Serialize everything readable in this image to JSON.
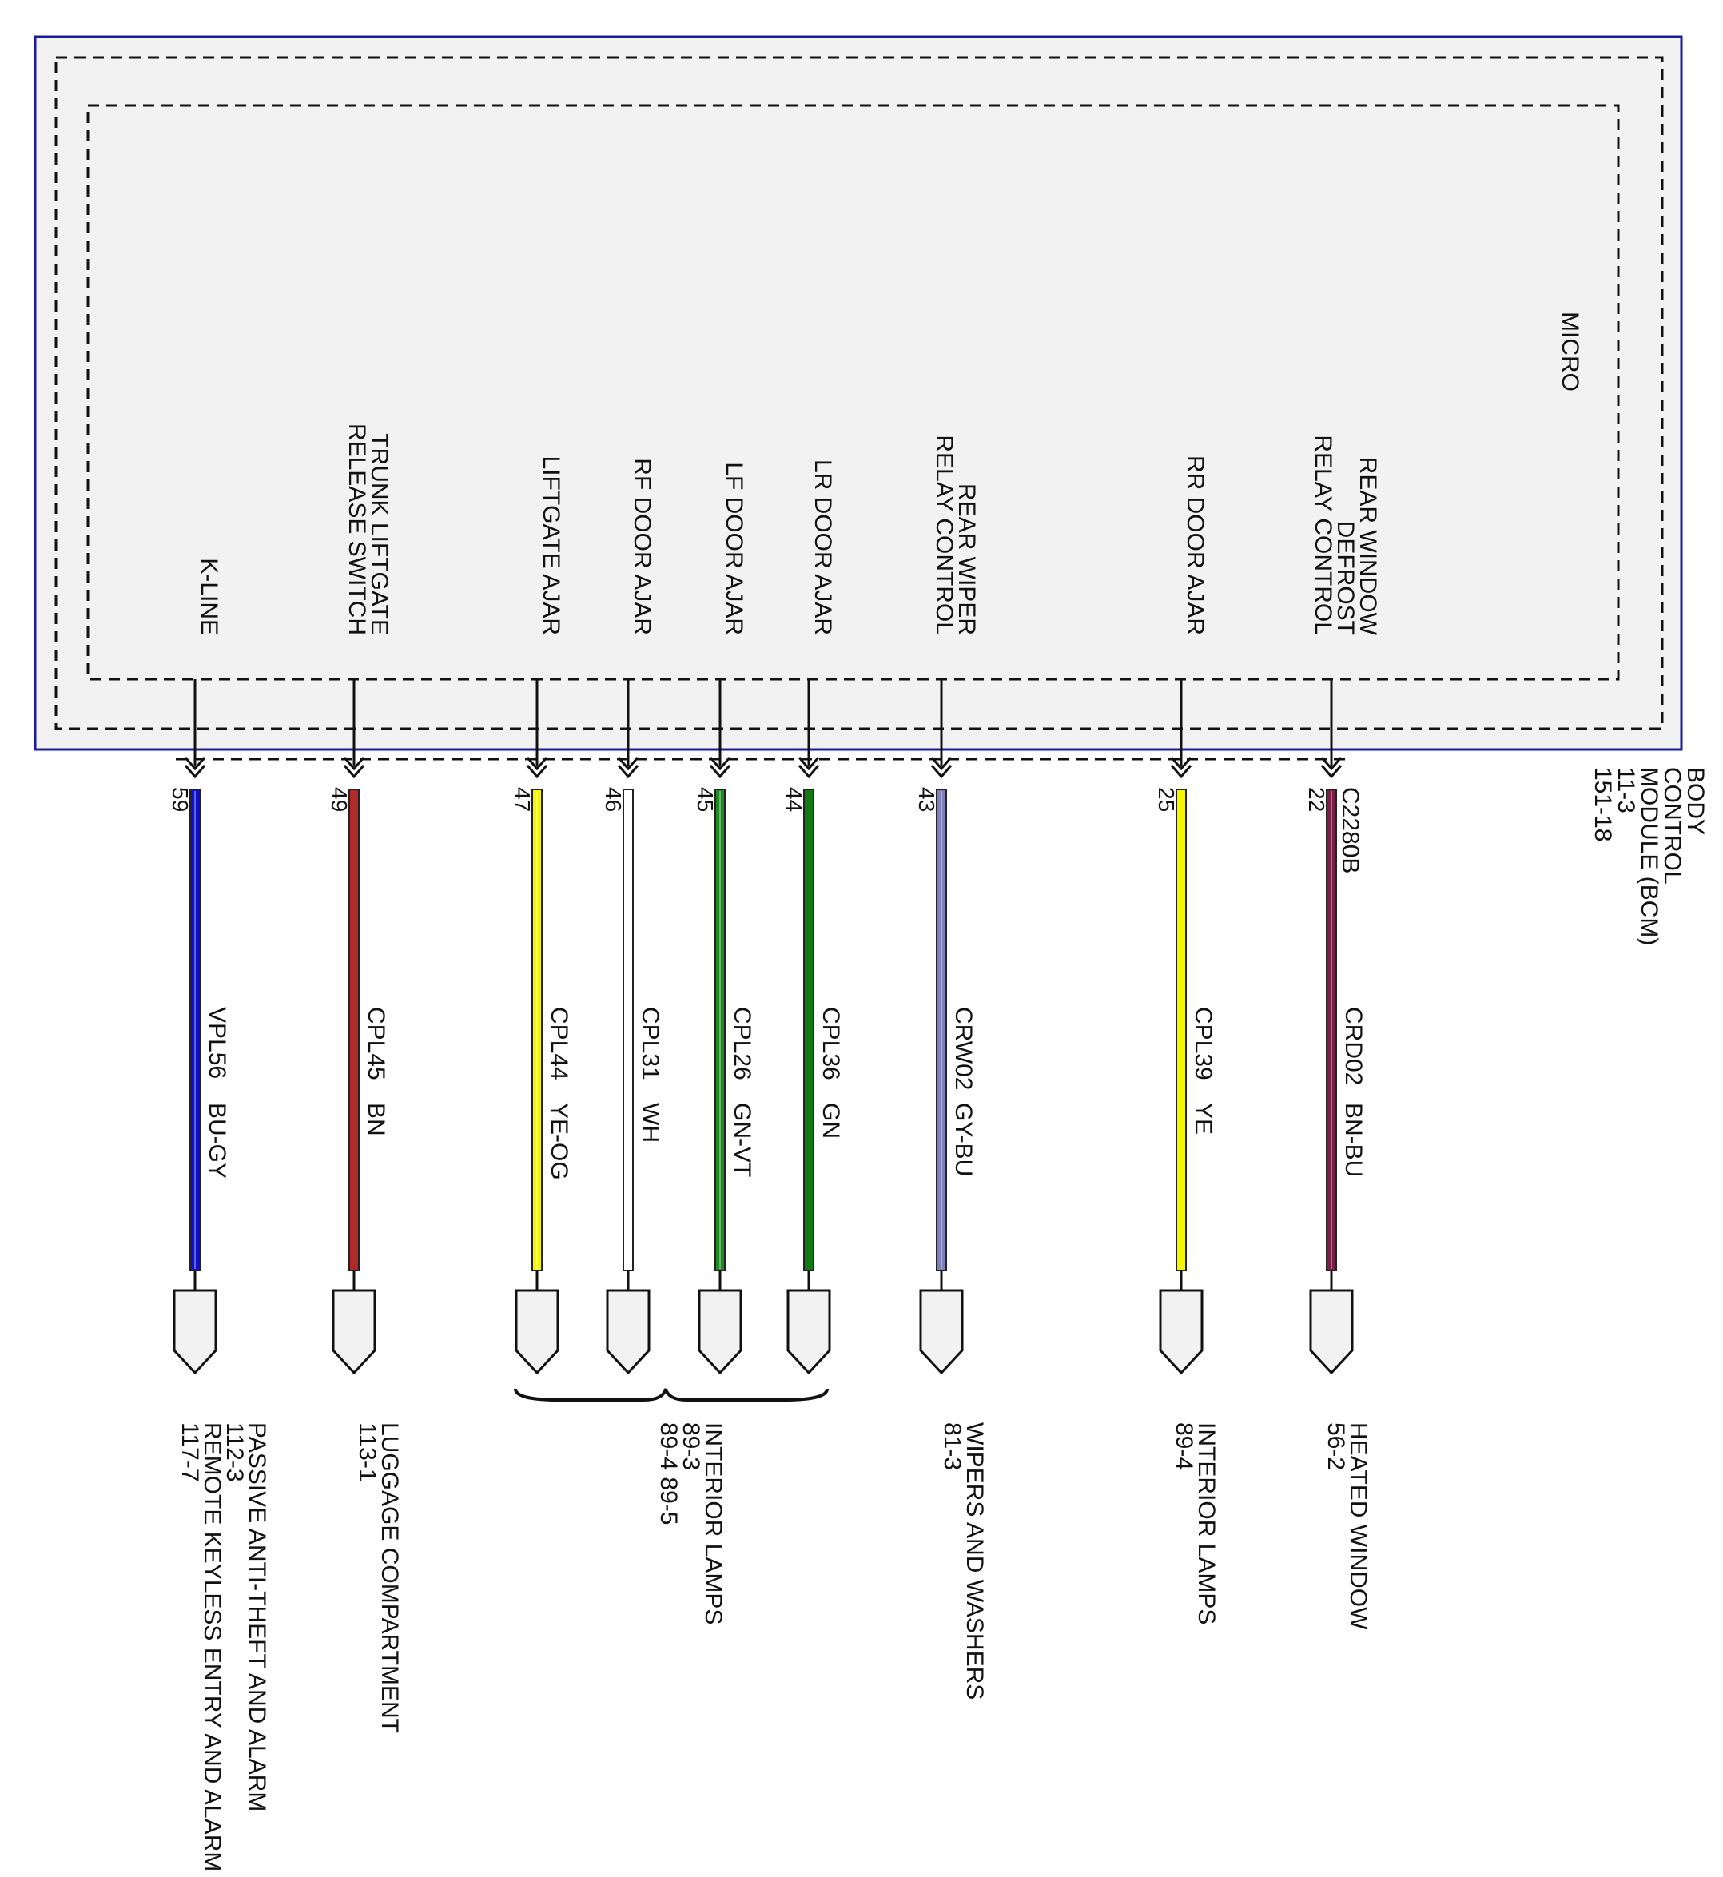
{
  "module": {
    "micro_label": "MICRO",
    "name_lines": [
      "BODY",
      "CONTROL",
      "MODULE (BCM)",
      "11-3",
      "151-18"
    ],
    "connector": "C2280B"
  },
  "colors": {
    "frame": "#1a1aa8",
    "module_fill": "#f2f2f2",
    "BU-GY": "#1010c8",
    "BN": "#b02a2a",
    "YE-OG": "#f5f500",
    "WH": "#ffffff",
    "GN-VT": "#1f8a1f",
    "GN": "#137a13",
    "GY-BU": "#8080b8",
    "YE": "#f5f500",
    "BN-BU": "#7a1f45"
  },
  "wires": [
    {
      "pin": "59",
      "function": [
        "K-LINE"
      ],
      "circuit": "VPL56",
      "color": "BU-GY"
    },
    {
      "pin": "49",
      "function": [
        "TRUNK LIFTGATE",
        "RELEASE SWITCH"
      ],
      "circuit": "CPL45",
      "color": "BN"
    },
    {
      "pin": "47",
      "function": [
        "LIFTGATE AJAR"
      ],
      "circuit": "CPL44",
      "color": "YE-OG"
    },
    {
      "pin": "46",
      "function": [
        "RF DOOR AJAR"
      ],
      "circuit": "CPL31",
      "color": "WH"
    },
    {
      "pin": "45",
      "function": [
        "LF DOOR AJAR"
      ],
      "circuit": "CPL26",
      "color": "GN-VT"
    },
    {
      "pin": "44",
      "function": [
        "LR DOOR AJAR"
      ],
      "circuit": "CPL36",
      "color": "GN"
    },
    {
      "pin": "43",
      "function": [
        "REAR WIPER",
        "RELAY CONTROL"
      ],
      "circuit": "CRW02",
      "color": "GY-BU"
    },
    {
      "pin": "25",
      "function": [
        "RR DOOR AJAR"
      ],
      "circuit": "CPL39",
      "color": "YE"
    },
    {
      "pin": "22",
      "function": [
        "REAR WINDOW",
        "DEFROST",
        "RELAY CONTROL"
      ],
      "circuit": "CRD02",
      "color": "BN-BU"
    }
  ],
  "destinations": [
    {
      "lines": [
        "PASSIVE ANTI-THEFT AND ALARM",
        "112-3",
        "REMOTE KEYLESS ENTRY AND ALARM",
        "117-7"
      ]
    },
    {
      "lines": [
        "LUGGAGE COMPARTMENT",
        "113-1"
      ]
    },
    {
      "lines": [
        "INTERIOR LAMPS",
        "89-3",
        "89-4     89-5"
      ]
    },
    {
      "lines": [
        "WIPERS AND WASHERS",
        "81-3"
      ]
    },
    {
      "lines": [
        "INTERIOR LAMPS",
        "89-4"
      ]
    },
    {
      "lines": [
        "HEATED WINDOW",
        "56-2"
      ]
    }
  ]
}
